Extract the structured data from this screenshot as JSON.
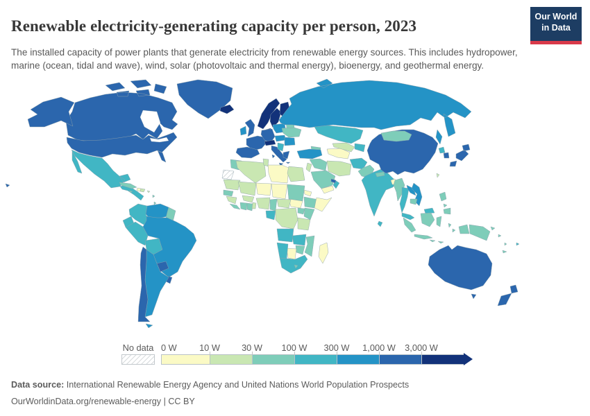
{
  "header": {
    "title": "Renewable electricity-generating capacity per person, 2023",
    "subtitle": "The installed capacity of power plants that generate electricity from renewable energy sources. This includes hydropower, marine (ocean, tidal and wave), wind, solar (photovoltaic and thermal energy), bioenergy, and geothermal energy."
  },
  "logo": {
    "line1": "Our World",
    "line2": "in Data",
    "bg_color": "#1d3d63",
    "accent_color": "#d93a4a"
  },
  "footer": {
    "data_source_label": "Data source:",
    "data_source_text": " International Renewable Energy Agency and United Nations World Population Prospects",
    "url_line": "OurWorldinData.org/renewable-energy | CC BY"
  },
  "chart_data": {
    "type": "heatmap",
    "subtype": "choropleth_world_map",
    "title": "Renewable electricity-generating capacity per person, 2023",
    "unit": "watts per person",
    "legend_position": "bottom",
    "no_data_label": "No data",
    "legend": {
      "tick_labels": [
        "0 W",
        "10 W",
        "30 W",
        "100 W",
        "300 W",
        "1,000 W",
        "3,000 W"
      ],
      "bins": [
        {
          "label": "0 W",
          "range": "0–10 W",
          "color": "#fbfac5"
        },
        {
          "label": "10 W",
          "range": "10–30 W",
          "color": "#c9e7b2"
        },
        {
          "label": "30 W",
          "range": "30–100 W",
          "color": "#7ecdb9"
        },
        {
          "label": "100 W",
          "range": "100–300 W",
          "color": "#41b6c4"
        },
        {
          "label": "300 W",
          "range": "300–1,000 W",
          "color": "#2493c6"
        },
        {
          "label": "1,000 W",
          "range": "1,000–3,000 W",
          "color": "#2b66ad"
        },
        {
          "label": "3,000 W",
          "range": "3,000+ W",
          "color": "#12327a"
        }
      ]
    },
    "countries": {
      "canada": 5,
      "united-states": 5,
      "greenland": 5,
      "iceland": 6,
      "mexico": 3,
      "central-america": 3,
      "cuba": 2,
      "jamaica": 2,
      "haiti": 0,
      "dominican-republic": 1,
      "puerto-rico": 1,
      "lesser-antilles": 2,
      "colombia": 3,
      "venezuela": 4,
      "guianas": 2,
      "ecuador": 3,
      "peru": 3,
      "bolivia": 3,
      "brazil": 4,
      "paraguay": 5,
      "uruguay": 5,
      "argentina": 4,
      "chile": 5,
      "tierra-del-fuego": 4,
      "norway": 6,
      "sweden": 6,
      "finland": 6,
      "denmark": 6,
      "united-kingdom": 5,
      "ireland": 4,
      "france": 5,
      "spain-portugal": 5,
      "germany": 5,
      "austria-switzerland": 6,
      "italy": 5,
      "poland": 4,
      "baltics": 5,
      "belarus": 2,
      "ukraine": 2,
      "czechia-hungary": 4,
      "romania-bulgaria": 4,
      "western-balkans": 3,
      "greece": 5,
      "russia": 4,
      "kazakhstan": 3,
      "caucasus": 2,
      "turkey": 4,
      "syria-iraq": 2,
      "israel-jordan": 1,
      "saudi-arabia": 2,
      "yemen": 0,
      "oman": 3,
      "uae": 5,
      "iran": 1,
      "turkmenistan": 0,
      "uzbekistan": 1,
      "kyrgyzstan-tajikistan": 3,
      "afghanistan": 3,
      "pakistan": 2,
      "india": 3,
      "sri-lanka": 3,
      "nepal": 2,
      "bangladesh": 0,
      "china": 5,
      "mongolia": 2,
      "taiwan": 1,
      "north-korea": 3,
      "south-korea": 5,
      "japan": 5,
      "myanmar": 2,
      "thailand": 3,
      "laos": 4,
      "vietnam": 4,
      "cambodia": 2,
      "malaysia": 3,
      "malaysia-borneo": 3,
      "indonesia": 2,
      "papua-new-guinea": 2,
      "philippines": 2,
      "morocco": 2,
      "western-sahara": "no-data",
      "algeria": 1,
      "tunisia": 1,
      "libya": 0,
      "egypt": 1,
      "mauritania": 1,
      "mali": 1,
      "niger": 0,
      "chad": 0,
      "sudan": 2,
      "eritrea": 0,
      "ethiopia": 2,
      "somalia": 0,
      "south-sudan": 0,
      "senegal": 2,
      "guinea": 1,
      "sierra-leone-liberia": 2,
      "cote-divoire": 2,
      "ghana": 2,
      "togo-benin": 1,
      "burkina-faso": 1,
      "nigeria": 1,
      "cameroon": 2,
      "central-african-republic": 1,
      "gabon-congo": 3,
      "dr-congo": 1,
      "uganda": 2,
      "kenya": 2,
      "tanzania": 1,
      "angola": 3,
      "zambia": 3,
      "mozambique": 2,
      "zimbabwe": 2,
      "botswana": 0,
      "namibia": 3,
      "south-africa": 3,
      "lesotho": 2,
      "madagascar": 0,
      "australia": 5,
      "tasmania": 5,
      "new-zealand-north": 5,
      "new-zealand-south": 5,
      "fiji": 3,
      "new-caledonia": 2,
      "vanuatu": 2,
      "solomon-islands": 2,
      "aleutians": 5
    }
  }
}
